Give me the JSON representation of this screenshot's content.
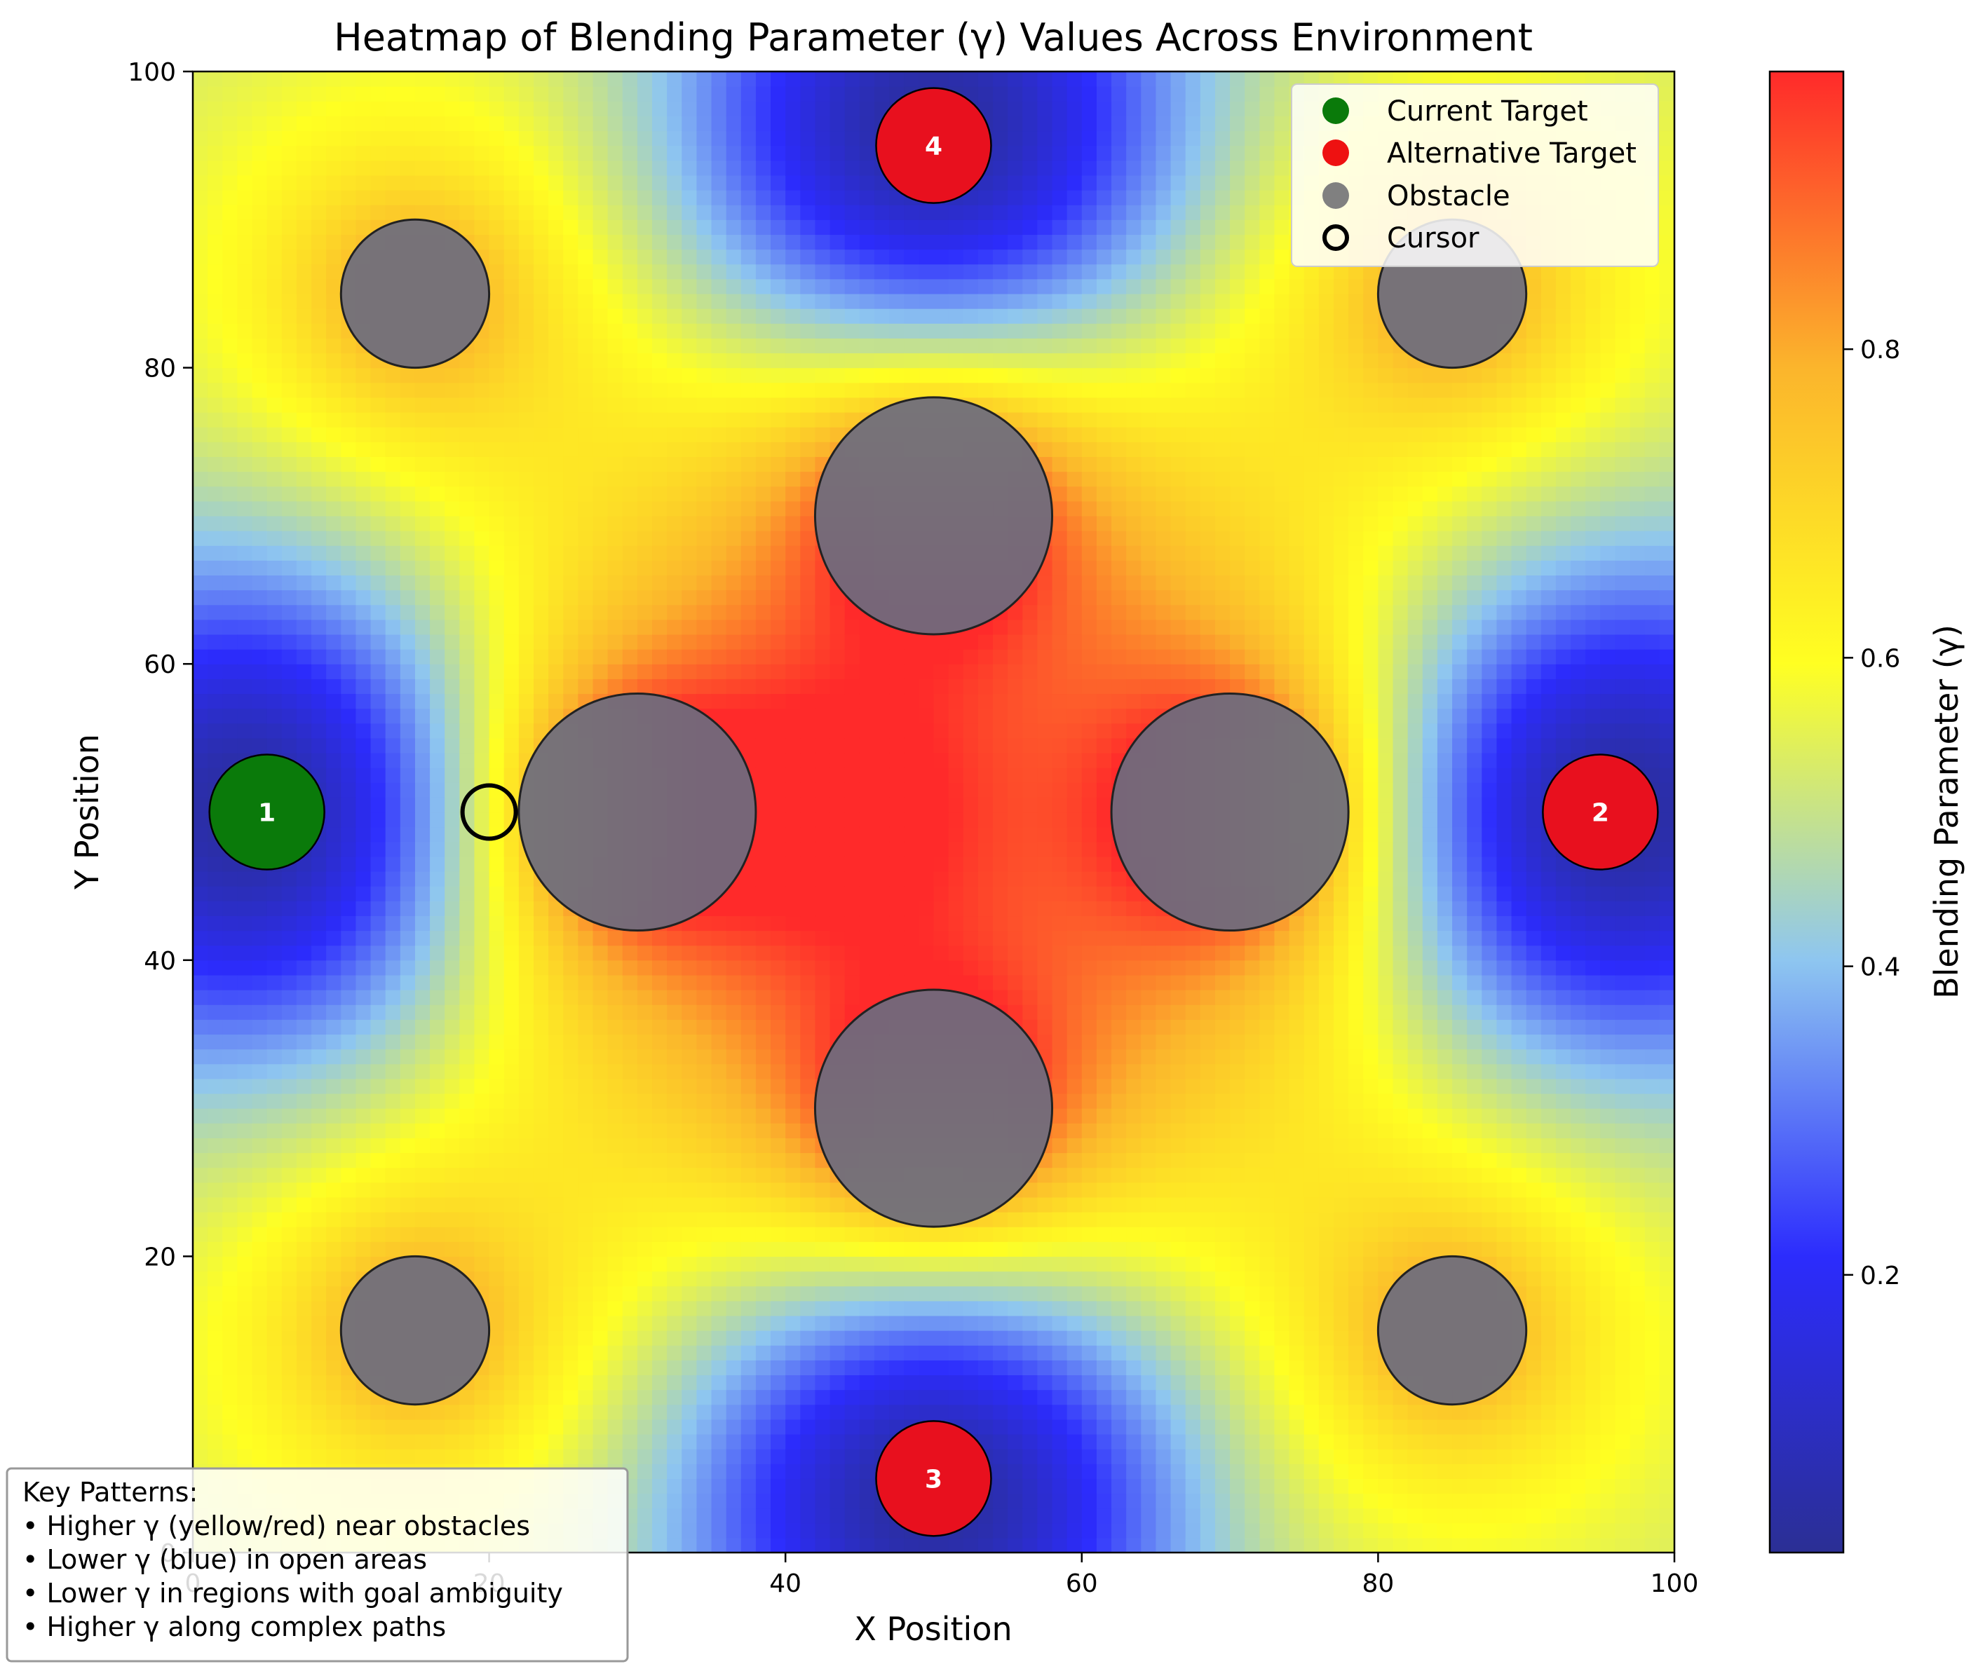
{
  "chart_data": {
    "type": "heatmap",
    "title": "Heatmap of Blending Parameter (γ) Values Across Environment",
    "xlabel": "X Position",
    "ylabel": "Y Position",
    "xlim": [
      0,
      100
    ],
    "ylim": [
      0,
      100
    ],
    "x_ticks": [
      "0",
      "20",
      "40",
      "60",
      "80",
      "100"
    ],
    "y_ticks": [
      "0",
      "20",
      "40",
      "60",
      "80",
      "100"
    ],
    "colorbar": {
      "label": "Blending Parameter (γ)",
      "range": [
        0.02,
        0.98
      ],
      "ticks": [
        "0.2",
        "0.4",
        "0.6",
        "0.8"
      ],
      "colormap": [
        "#2b2f94",
        "#2c2cfd",
        "#8ec6f0",
        "#ffff22",
        "#fbb52c",
        "#ff2a2a"
      ]
    },
    "legend": {
      "placement": "top-right",
      "entries": [
        {
          "label": "Current Target",
          "color": "#0a7a0a",
          "marker": "filled-circle"
        },
        {
          "label": "Alternative Target",
          "color": "#ee1111",
          "marker": "filled-circle"
        },
        {
          "label": "Obstacle",
          "color": "#808080",
          "marker": "filled-circle"
        },
        {
          "label": "Cursor",
          "color": "#000000",
          "marker": "hollow-circle"
        }
      ]
    },
    "targets": [
      {
        "id": "1",
        "x": 5,
        "y": 50,
        "kind": "current",
        "color": "#0a7a0a"
      },
      {
        "id": "2",
        "x": 95,
        "y": 50,
        "kind": "alternative",
        "color": "#e8101e"
      },
      {
        "id": "3",
        "x": 50,
        "y": 5,
        "kind": "alternative",
        "color": "#e8101e"
      },
      {
        "id": "4",
        "x": 50,
        "y": 95,
        "kind": "alternative",
        "color": "#e8101e"
      }
    ],
    "obstacles": [
      {
        "x": 30,
        "y": 50,
        "r": 8
      },
      {
        "x": 70,
        "y": 50,
        "r": 8
      },
      {
        "x": 50,
        "y": 70,
        "r": 8
      },
      {
        "x": 50,
        "y": 30,
        "r": 8
      },
      {
        "x": 15,
        "y": 85,
        "r": 5
      },
      {
        "x": 85,
        "y": 85,
        "r": 5
      },
      {
        "x": 15,
        "y": 15,
        "r": 5
      },
      {
        "x": 85,
        "y": 15,
        "r": 5
      }
    ],
    "cursor": {
      "x": 20,
      "y": 50
    },
    "annotation": {
      "heading": "Key Patterns:",
      "lines": [
        "• Higher γ (yellow/red) near obstacles",
        "• Lower γ (blue) in open areas",
        "• Lower γ in regions with goal ambiguity",
        "• Higher γ along complex paths"
      ]
    }
  }
}
